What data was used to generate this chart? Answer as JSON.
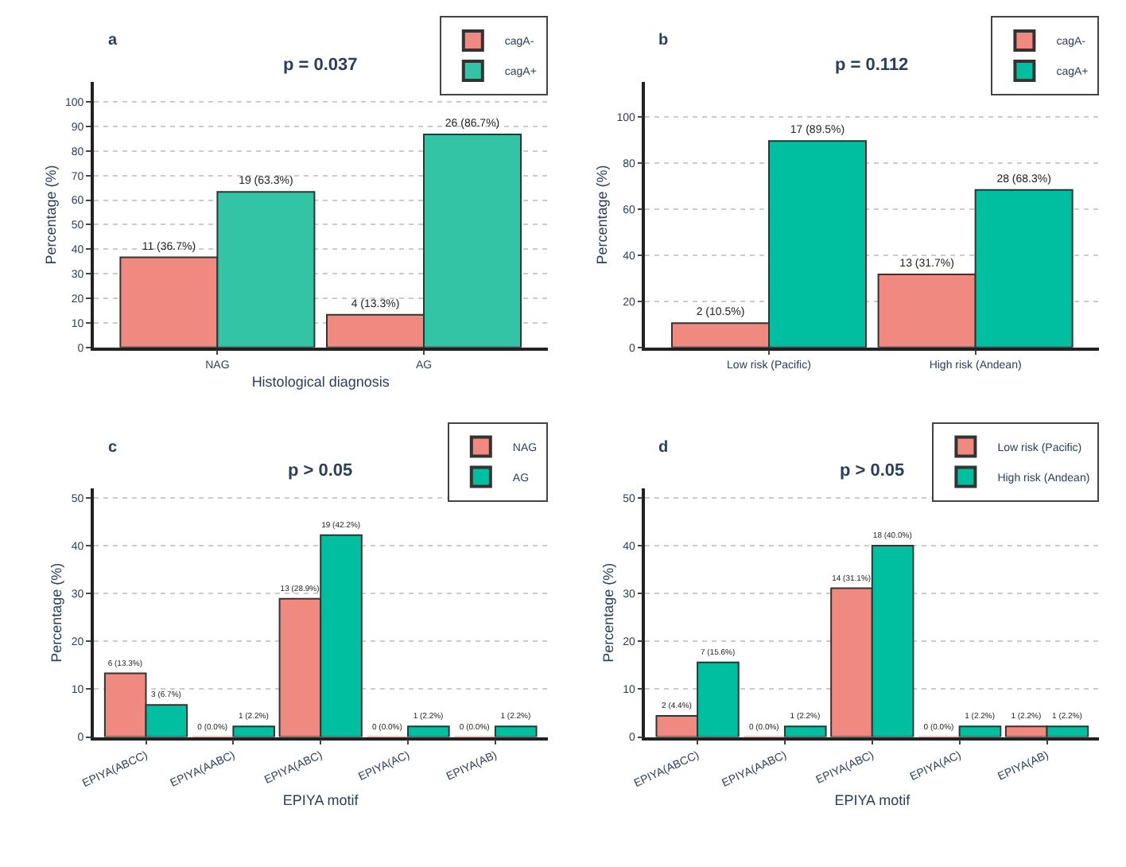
{
  "chart_data": [
    {
      "type": "bar",
      "title": "p = 0.037",
      "annotations": [
        "a"
      ],
      "xlabel": "Histological diagnosis",
      "ylabel": "Percentage (%)",
      "categories": [
        "NAG",
        "AG"
      ],
      "series": [
        {
          "name": "cagA-",
          "color": "#f08a80",
          "values": [
            36.7,
            13.3
          ],
          "value_labels": [
            "11 (36.7%)",
            "4 (13.3%)"
          ]
        },
        {
          "name": "cagA+",
          "color": "#33c4a6",
          "values": [
            63.3,
            86.7
          ],
          "value_labels": [
            "19 (63.3%)",
            "26 (86.7%)"
          ]
        }
      ],
      "ylim": [
        0,
        108
      ],
      "yticks": [
        0,
        10,
        20,
        30,
        40,
        50,
        60,
        70,
        80,
        90,
        100
      ],
      "grid": "y",
      "legend": "top right"
    },
    {
      "type": "bar",
      "title": "p = 0.112",
      "annotations": [
        "b"
      ],
      "ylabel": "Percentage (%)",
      "categories": [
        "Low risk (Pacific)",
        "High risk (Andean)"
      ],
      "series": [
        {
          "name": "cagA-",
          "color": "#f08a80",
          "values": [
            10.5,
            31.7
          ],
          "value_labels": [
            "2 (10.5%)",
            "13 (31.7%)"
          ]
        },
        {
          "name": "cagA+",
          "color": "#00bfa0",
          "values": [
            89.5,
            68.3
          ],
          "value_labels": [
            "17 (89.5%)",
            "28 (68.3%)"
          ]
        }
      ],
      "ylim": [
        0,
        115
      ],
      "yticks": [
        0,
        20,
        40,
        60,
        80,
        100
      ],
      "grid": "y",
      "legend": "top right"
    },
    {
      "type": "bar",
      "title": "p > 0.05",
      "annotations": [
        "c"
      ],
      "xlabel": "EPIYA motif",
      "ylabel": "Percentage (%)",
      "categories": [
        "EPIYA(ABCC)",
        "EPIYA(AABC)",
        "EPIYA(ABC)",
        "EPIYA(AC)",
        "EPIYA(AB)"
      ],
      "series": [
        {
          "name": "NAG",
          "color": "#f08a80",
          "values": [
            13.3,
            0.0,
            28.9,
            0.0,
            0.0
          ],
          "value_labels": [
            "6 (13.3%)",
            "0 (0.0%)",
            "13 (28.9%)",
            "0 (0.0%)",
            "0 (0.0%)"
          ]
        },
        {
          "name": "AG",
          "color": "#00bfa0",
          "values": [
            6.7,
            2.2,
            42.2,
            2.2,
            2.2
          ],
          "value_labels": [
            "3 (6.7%)",
            "1 (2.2%)",
            "19 (42.2%)",
            "1 (2.2%)",
            "1 (2.2%)"
          ]
        }
      ],
      "ylim": [
        0,
        52
      ],
      "yticks": [
        0,
        10,
        20,
        30,
        40,
        50
      ],
      "grid": "y",
      "legend": "top right"
    },
    {
      "type": "bar",
      "title": "p > 0.05",
      "annotations": [
        "d"
      ],
      "xlabel": "EPIYA motif",
      "ylabel": "Percentage (%)",
      "categories": [
        "EPIYA(ABCC)",
        "EPIYA(AABC)",
        "EPIYA(ABC)",
        "EPIYA(AC)",
        "EPIYA(AB)"
      ],
      "series": [
        {
          "name": "Low risk (Pacific)",
          "color": "#f08a80",
          "values": [
            4.4,
            0.0,
            31.1,
            0.0,
            2.2
          ],
          "value_labels": [
            "2 (4.4%)",
            "0 (0.0%)",
            "14 (31.1%)",
            "0 (0.0%)",
            "1 (2.2%)"
          ]
        },
        {
          "name": "High risk (Andean)",
          "color": "#00bfa0",
          "values": [
            15.6,
            2.2,
            40.0,
            2.2,
            2.2
          ],
          "value_labels": [
            "7 (15.6%)",
            "1 (2.2%)",
            "18 (40.0%)",
            "1 (2.2%)",
            "1 (2.2%)"
          ]
        }
      ],
      "ylim": [
        0,
        52
      ],
      "yticks": [
        0,
        10,
        20,
        30,
        40,
        50
      ],
      "grid": "y",
      "legend": "top right"
    }
  ]
}
